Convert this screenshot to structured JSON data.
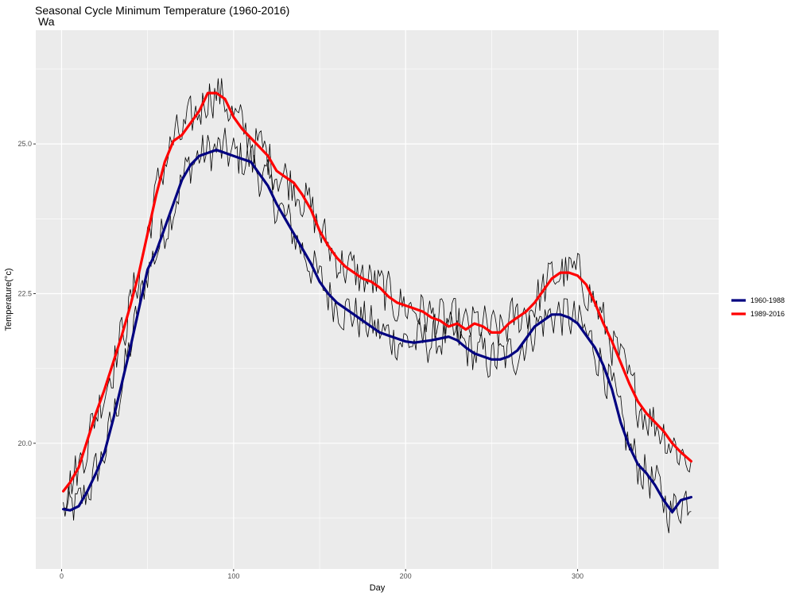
{
  "chart_data": {
    "type": "line",
    "title": "Seasonal Cycle Minimum Temperature (1960-2016)",
    "subtitle": "Wa",
    "xlabel": "Day",
    "ylabel": "Temperature(°c)",
    "xlim": [
      -15,
      382
    ],
    "ylim": [
      17.9,
      26.9
    ],
    "x_ticks": [
      0,
      100,
      200,
      300
    ],
    "x_tick_labels": [
      "0",
      "100",
      "200",
      "300"
    ],
    "y_ticks": [
      20.0,
      22.5,
      25.0
    ],
    "y_tick_labels": [
      "20.0",
      "22.5",
      "25.0"
    ],
    "grid": true,
    "legend_position": "right",
    "background": "#ebebeb",
    "raw_color": "#000000",
    "series": [
      {
        "name": "1960-1988",
        "color": "#000080",
        "x": [
          1,
          5,
          10,
          15,
          20,
          25,
          30,
          35,
          40,
          45,
          50,
          55,
          60,
          65,
          70,
          75,
          80,
          85,
          90,
          95,
          100,
          105,
          110,
          115,
          120,
          125,
          130,
          135,
          140,
          145,
          150,
          155,
          160,
          165,
          170,
          175,
          180,
          185,
          190,
          195,
          200,
          205,
          210,
          215,
          220,
          225,
          230,
          235,
          240,
          245,
          250,
          255,
          260,
          265,
          270,
          275,
          280,
          285,
          290,
          295,
          300,
          305,
          310,
          315,
          320,
          325,
          330,
          335,
          340,
          345,
          350,
          355,
          360,
          366
        ],
        "values": [
          18.9,
          18.88,
          18.95,
          19.2,
          19.5,
          19.85,
          20.4,
          21.0,
          21.6,
          22.25,
          22.9,
          23.2,
          23.6,
          24.0,
          24.4,
          24.65,
          24.8,
          24.85,
          24.9,
          24.85,
          24.8,
          24.75,
          24.7,
          24.5,
          24.3,
          24.0,
          23.75,
          23.5,
          23.25,
          23.0,
          22.7,
          22.5,
          22.35,
          22.25,
          22.15,
          22.05,
          21.95,
          21.85,
          21.8,
          21.75,
          21.7,
          21.68,
          21.7,
          21.72,
          21.75,
          21.78,
          21.72,
          21.6,
          21.5,
          21.45,
          21.4,
          21.4,
          21.45,
          21.55,
          21.75,
          21.95,
          22.05,
          22.15,
          22.15,
          22.1,
          22.0,
          21.8,
          21.6,
          21.3,
          20.9,
          20.35,
          19.95,
          19.65,
          19.5,
          19.3,
          19.05,
          18.85,
          19.05,
          19.1
        ]
      },
      {
        "name": "1989-2016",
        "color": "#ff0000",
        "x": [
          1,
          5,
          10,
          15,
          20,
          25,
          30,
          35,
          40,
          45,
          50,
          55,
          60,
          65,
          70,
          75,
          80,
          85,
          90,
          95,
          100,
          105,
          110,
          115,
          120,
          125,
          130,
          135,
          140,
          145,
          150,
          155,
          160,
          165,
          170,
          175,
          180,
          185,
          190,
          195,
          200,
          205,
          210,
          215,
          220,
          225,
          230,
          235,
          240,
          245,
          250,
          255,
          260,
          265,
          270,
          275,
          280,
          285,
          290,
          295,
          300,
          305,
          310,
          315,
          320,
          325,
          330,
          335,
          340,
          345,
          350,
          355,
          360,
          366
        ],
        "values": [
          19.2,
          19.35,
          19.6,
          20.05,
          20.5,
          20.9,
          21.35,
          21.8,
          22.3,
          22.85,
          23.5,
          24.15,
          24.7,
          25.05,
          25.15,
          25.35,
          25.55,
          25.85,
          25.85,
          25.75,
          25.45,
          25.25,
          25.1,
          24.95,
          24.8,
          24.55,
          24.45,
          24.35,
          24.15,
          23.9,
          23.55,
          23.3,
          23.1,
          22.95,
          22.85,
          22.75,
          22.7,
          22.6,
          22.45,
          22.35,
          22.3,
          22.25,
          22.2,
          22.1,
          22.05,
          21.95,
          22.0,
          21.9,
          22.0,
          21.95,
          21.85,
          21.85,
          22.0,
          22.1,
          22.2,
          22.35,
          22.55,
          22.75,
          22.85,
          22.85,
          22.8,
          22.65,
          22.35,
          22.0,
          21.7,
          21.35,
          21.0,
          20.7,
          20.5,
          20.35,
          20.2,
          20.0,
          19.85,
          19.7
        ]
      }
    ]
  }
}
